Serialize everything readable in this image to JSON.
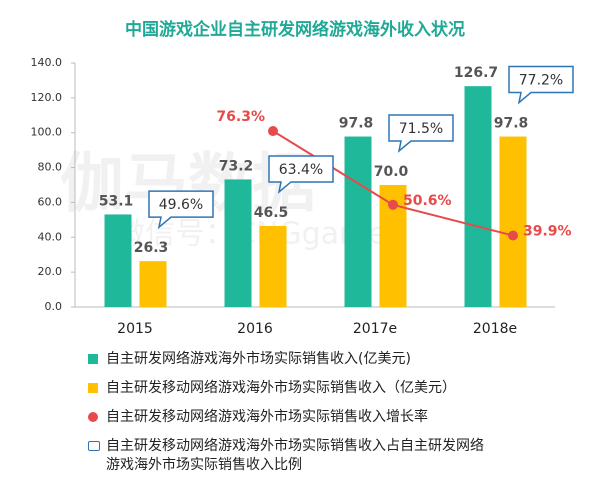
{
  "chart_data": {
    "type": "bar",
    "title": "中国游戏企业自主研发网络游戏海外收入状况",
    "watermark": [
      "伽马数据",
      "微信号：CNGgame"
    ],
    "categories": [
      "2015",
      "2016",
      "2017e",
      "2018e"
    ],
    "ylim": [
      0,
      140
    ],
    "yticks": [
      {
        "value": 0,
        "label": "0.0"
      },
      {
        "value": 20,
        "label": "20.0"
      },
      {
        "value": 40,
        "label": "40.0"
      },
      {
        "value": 60,
        "label": "60.0"
      },
      {
        "value": 80,
        "label": "80.0"
      },
      {
        "value": 100,
        "label": "100.0"
      },
      {
        "value": 120,
        "label": "120.0"
      },
      {
        "value": 140,
        "label": "140.0"
      }
    ],
    "y2lim": [
      15,
      100
    ],
    "grid": false,
    "series": [
      {
        "name": "自主研发网络游戏海外市场实际销售收入(亿美元)",
        "type": "bar",
        "color": "#1fb89a",
        "values": [
          53.1,
          73.2,
          97.8,
          126.7
        ],
        "value_labels": [
          "53.1",
          "73.2",
          "97.8",
          "126.7"
        ]
      },
      {
        "name": "自主研发移动网络游戏海外市场实际销售收入（亿美元）",
        "type": "bar",
        "color": "#ffc000",
        "values": [
          26.3,
          46.5,
          70.0,
          97.8
        ],
        "value_labels": [
          "26.3",
          "46.5",
          "70.0",
          "97.8"
        ]
      },
      {
        "name": "自主研发移动网络游戏海外市场实际销售收入增长率",
        "type": "line",
        "axis": "y2",
        "color": "#e84a4a",
        "values": [
          null,
          76.3,
          50.6,
          39.9
        ],
        "value_labels": [
          null,
          "76.3%",
          "50.6%",
          "39.9%"
        ]
      },
      {
        "name": "自主研发移动网络游戏海外市场实际销售收入占自主研发网络游戏海外市场实际销售收入比例",
        "type": "callout",
        "color": "#2e75b6",
        "values": [
          49.6,
          63.4,
          71.5,
          77.2
        ],
        "value_labels": [
          "49.6%",
          "63.4%",
          "71.5%",
          "77.2%"
        ]
      }
    ]
  }
}
